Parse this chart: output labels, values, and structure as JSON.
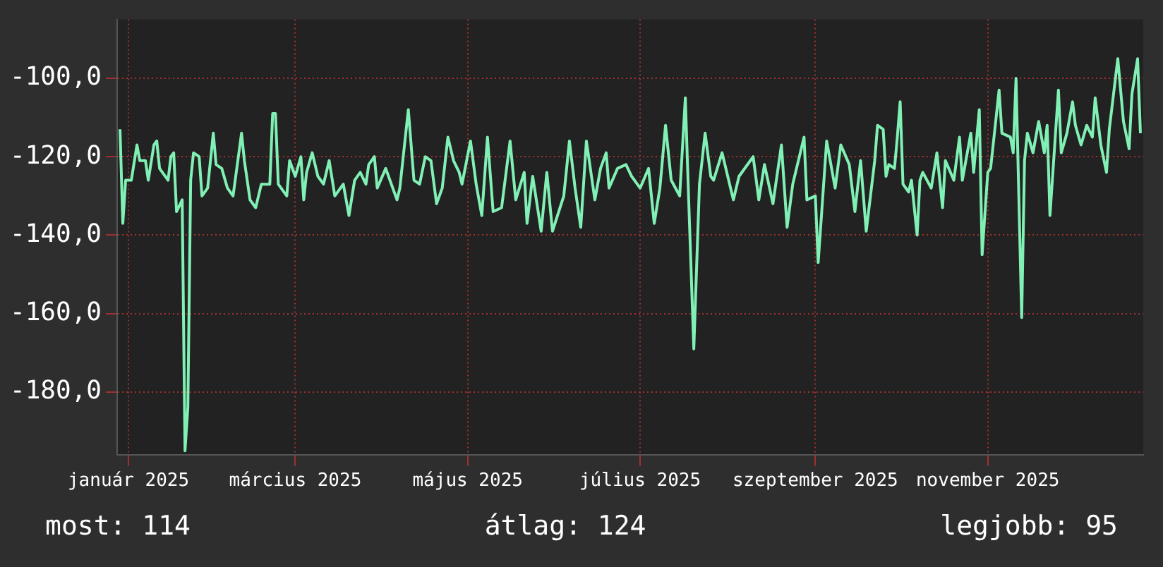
{
  "chart_data": {
    "type": "line",
    "x": [
      "2024-12-29",
      "2024-12-30",
      "2024-12-31",
      "2025-01-02",
      "2025-01-04",
      "2025-01-05",
      "2025-01-07",
      "2025-01-08",
      "2025-01-10",
      "2025-01-11",
      "2025-01-12",
      "2025-01-15",
      "2025-01-16",
      "2025-01-17",
      "2025-01-18",
      "2025-01-20",
      "2025-01-21",
      "2025-01-22",
      "2025-01-23",
      "2025-01-24",
      "2025-01-26",
      "2025-01-27",
      "2025-01-29",
      "2025-01-31",
      "2025-02-01",
      "2025-02-03",
      "2025-02-05",
      "2025-02-07",
      "2025-02-10",
      "2025-02-11",
      "2025-02-13",
      "2025-02-15",
      "2025-02-17",
      "2025-02-20",
      "2025-02-21",
      "2025-02-22",
      "2025-02-23",
      "2025-02-26",
      "2025-02-27",
      "2025-03-01",
      "2025-03-03",
      "2025-03-04",
      "2025-03-05",
      "2025-03-07",
      "2025-03-09",
      "2025-03-11",
      "2025-03-13",
      "2025-03-15",
      "2025-03-18",
      "2025-03-20",
      "2025-03-22",
      "2025-03-24",
      "2025-03-26",
      "2025-03-27",
      "2025-03-29",
      "2025-03-30",
      "2025-04-02",
      "2025-04-06",
      "2025-04-07",
      "2025-04-10",
      "2025-04-12",
      "2025-04-14",
      "2025-04-16",
      "2025-04-18",
      "2025-04-20",
      "2025-04-22",
      "2025-04-24",
      "2025-04-26",
      "2025-04-28",
      "2025-04-29",
      "2025-05-02",
      "2025-05-04",
      "2025-05-06",
      "2025-05-08",
      "2025-05-10",
      "2025-05-13",
      "2025-05-16",
      "2025-05-18",
      "2025-05-21",
      "2025-05-22",
      "2025-05-24",
      "2025-05-27",
      "2025-05-29",
      "2025-05-31",
      "2025-06-04",
      "2025-06-06",
      "2025-06-08",
      "2025-06-10",
      "2025-06-12",
      "2025-06-15",
      "2025-06-17",
      "2025-06-19",
      "2025-06-20",
      "2025-06-23",
      "2025-06-26",
      "2025-06-28",
      "2025-07-01",
      "2025-07-04",
      "2025-07-06",
      "2025-07-08",
      "2025-07-10",
      "2025-07-12",
      "2025-07-15",
      "2025-07-17",
      "2025-07-18",
      "2025-07-20",
      "2025-07-22",
      "2025-07-24",
      "2025-07-26",
      "2025-07-27",
      "2025-07-30",
      "2025-08-01",
      "2025-08-03",
      "2025-08-05",
      "2025-08-10",
      "2025-08-12",
      "2025-08-14",
      "2025-08-17",
      "2025-08-20",
      "2025-08-22",
      "2025-08-24",
      "2025-08-28",
      "2025-08-29",
      "2025-09-01",
      "2025-09-02",
      "2025-09-05",
      "2025-09-08",
      "2025-09-10",
      "2025-09-13",
      "2025-09-15",
      "2025-09-17",
      "2025-09-19",
      "2025-09-22",
      "2025-09-23",
      "2025-09-25",
      "2025-09-26",
      "2025-09-27",
      "2025-09-29",
      "2025-09-30",
      "2025-10-01",
      "2025-10-02",
      "2025-10-04",
      "2025-10-05",
      "2025-10-07",
      "2025-10-08",
      "2025-10-09",
      "2025-10-12",
      "2025-10-14",
      "2025-10-16",
      "2025-10-17",
      "2025-10-20",
      "2025-10-22",
      "2025-10-23",
      "2025-10-26",
      "2025-10-27",
      "2025-10-29",
      "2025-10-30",
      "2025-11-01",
      "2025-11-02",
      "2025-11-05",
      "2025-11-06",
      "2025-11-09",
      "2025-11-10",
      "2025-11-11",
      "2025-11-13",
      "2025-11-14",
      "2025-11-15",
      "2025-11-17",
      "2025-11-19",
      "2025-11-21",
      "2025-11-22",
      "2025-11-23",
      "2025-11-26",
      "2025-11-27",
      "2025-11-29",
      "2025-12-01",
      "2025-12-02",
      "2025-12-04",
      "2025-12-06",
      "2025-12-08",
      "2025-12-09",
      "2025-12-11",
      "2025-12-13",
      "2025-12-14",
      "2025-12-17",
      "2025-12-19",
      "2025-12-21",
      "2025-12-22",
      "2025-12-24",
      "2025-12-25"
    ],
    "series": [
      {
        "color": "#80f0b4",
        "values": [
          -113,
          -137,
          -126,
          -126,
          -117,
          -121,
          -121,
          -126,
          -117,
          -116,
          -123,
          -126,
          -120,
          -119,
          -134,
          -131,
          -195,
          -184,
          -126,
          -119,
          -120,
          -130,
          -128,
          -114,
          -122,
          -123,
          -128,
          -130,
          -114,
          -121,
          -131,
          -133,
          -127,
          -127,
          -109,
          -109,
          -127,
          -130,
          -121,
          -125,
          -120,
          -131,
          -124,
          -119,
          -125,
          -127,
          -121,
          -130,
          -127,
          -135,
          -126,
          -124,
          -127,
          -122,
          -120,
          -128,
          -123,
          -131,
          -128,
          -108,
          -126,
          -127,
          -120,
          -121,
          -132,
          -128,
          -115,
          -121,
          -124,
          -127,
          -116,
          -127,
          -135,
          -115,
          -134,
          -133,
          -116,
          -131,
          -124,
          -137,
          -125,
          -139,
          -124,
          -139,
          -130,
          -116,
          -128,
          -138,
          -116,
          -131,
          -123,
          -119,
          -128,
          -123,
          -122,
          -125,
          -128,
          -123,
          -137,
          -128,
          -112,
          -126,
          -130,
          -105,
          -127,
          -169,
          -127,
          -114,
          -125,
          -126,
          -119,
          -125,
          -131,
          -125,
          -120,
          -131,
          -122,
          -132,
          -117,
          -138,
          -127,
          -115,
          -131,
          -130,
          -147,
          -116,
          -128,
          -117,
          -122,
          -134,
          -121,
          -139,
          -121,
          -112,
          -113,
          -125,
          -122,
          -123,
          -115,
          -106,
          -127,
          -129,
          -126,
          -140,
          -126,
          -124,
          -128,
          -119,
          -133,
          -121,
          -126,
          -115,
          -126,
          -114,
          -124,
          -108,
          -145,
          -124,
          -123,
          -103,
          -114,
          -115,
          -119,
          -100,
          -161,
          -121,
          -114,
          -119,
          -111,
          -119,
          -112,
          -135,
          -103,
          -119,
          -114,
          -106,
          -112,
          -117,
          -112,
          -115,
          -105,
          -117,
          -124,
          -113,
          -95,
          -111,
          -118,
          -104,
          -95,
          -114
        ]
      }
    ],
    "xlim": [
      "2024-12-28",
      "2025-12-26"
    ],
    "xticks": [
      {
        "value": "2025-01-01",
        "label": "január 2025"
      },
      {
        "value": "2025-03-01",
        "label": "március 2025"
      },
      {
        "value": "2025-05-01",
        "label": "május 2025"
      },
      {
        "value": "2025-07-01",
        "label": "július 2025"
      },
      {
        "value": "2025-09-01",
        "label": "szeptember 2025"
      },
      {
        "value": "2025-11-01",
        "label": "november 2025"
      }
    ],
    "ylim": [
      -196,
      -85
    ],
    "yticks": [
      {
        "value": -100,
        "label": "-100,0"
      },
      {
        "value": -120,
        "label": "-120,0"
      },
      {
        "value": -140,
        "label": "-140,0"
      },
      {
        "value": -160,
        "label": "-160,0"
      },
      {
        "value": -180,
        "label": "-180,0"
      }
    ],
    "grid": true,
    "legend": false,
    "marker": "none",
    "line_style": "solid",
    "annotations": [
      "most: 114",
      "átlag: 124",
      "legjobb: 95"
    ]
  }
}
